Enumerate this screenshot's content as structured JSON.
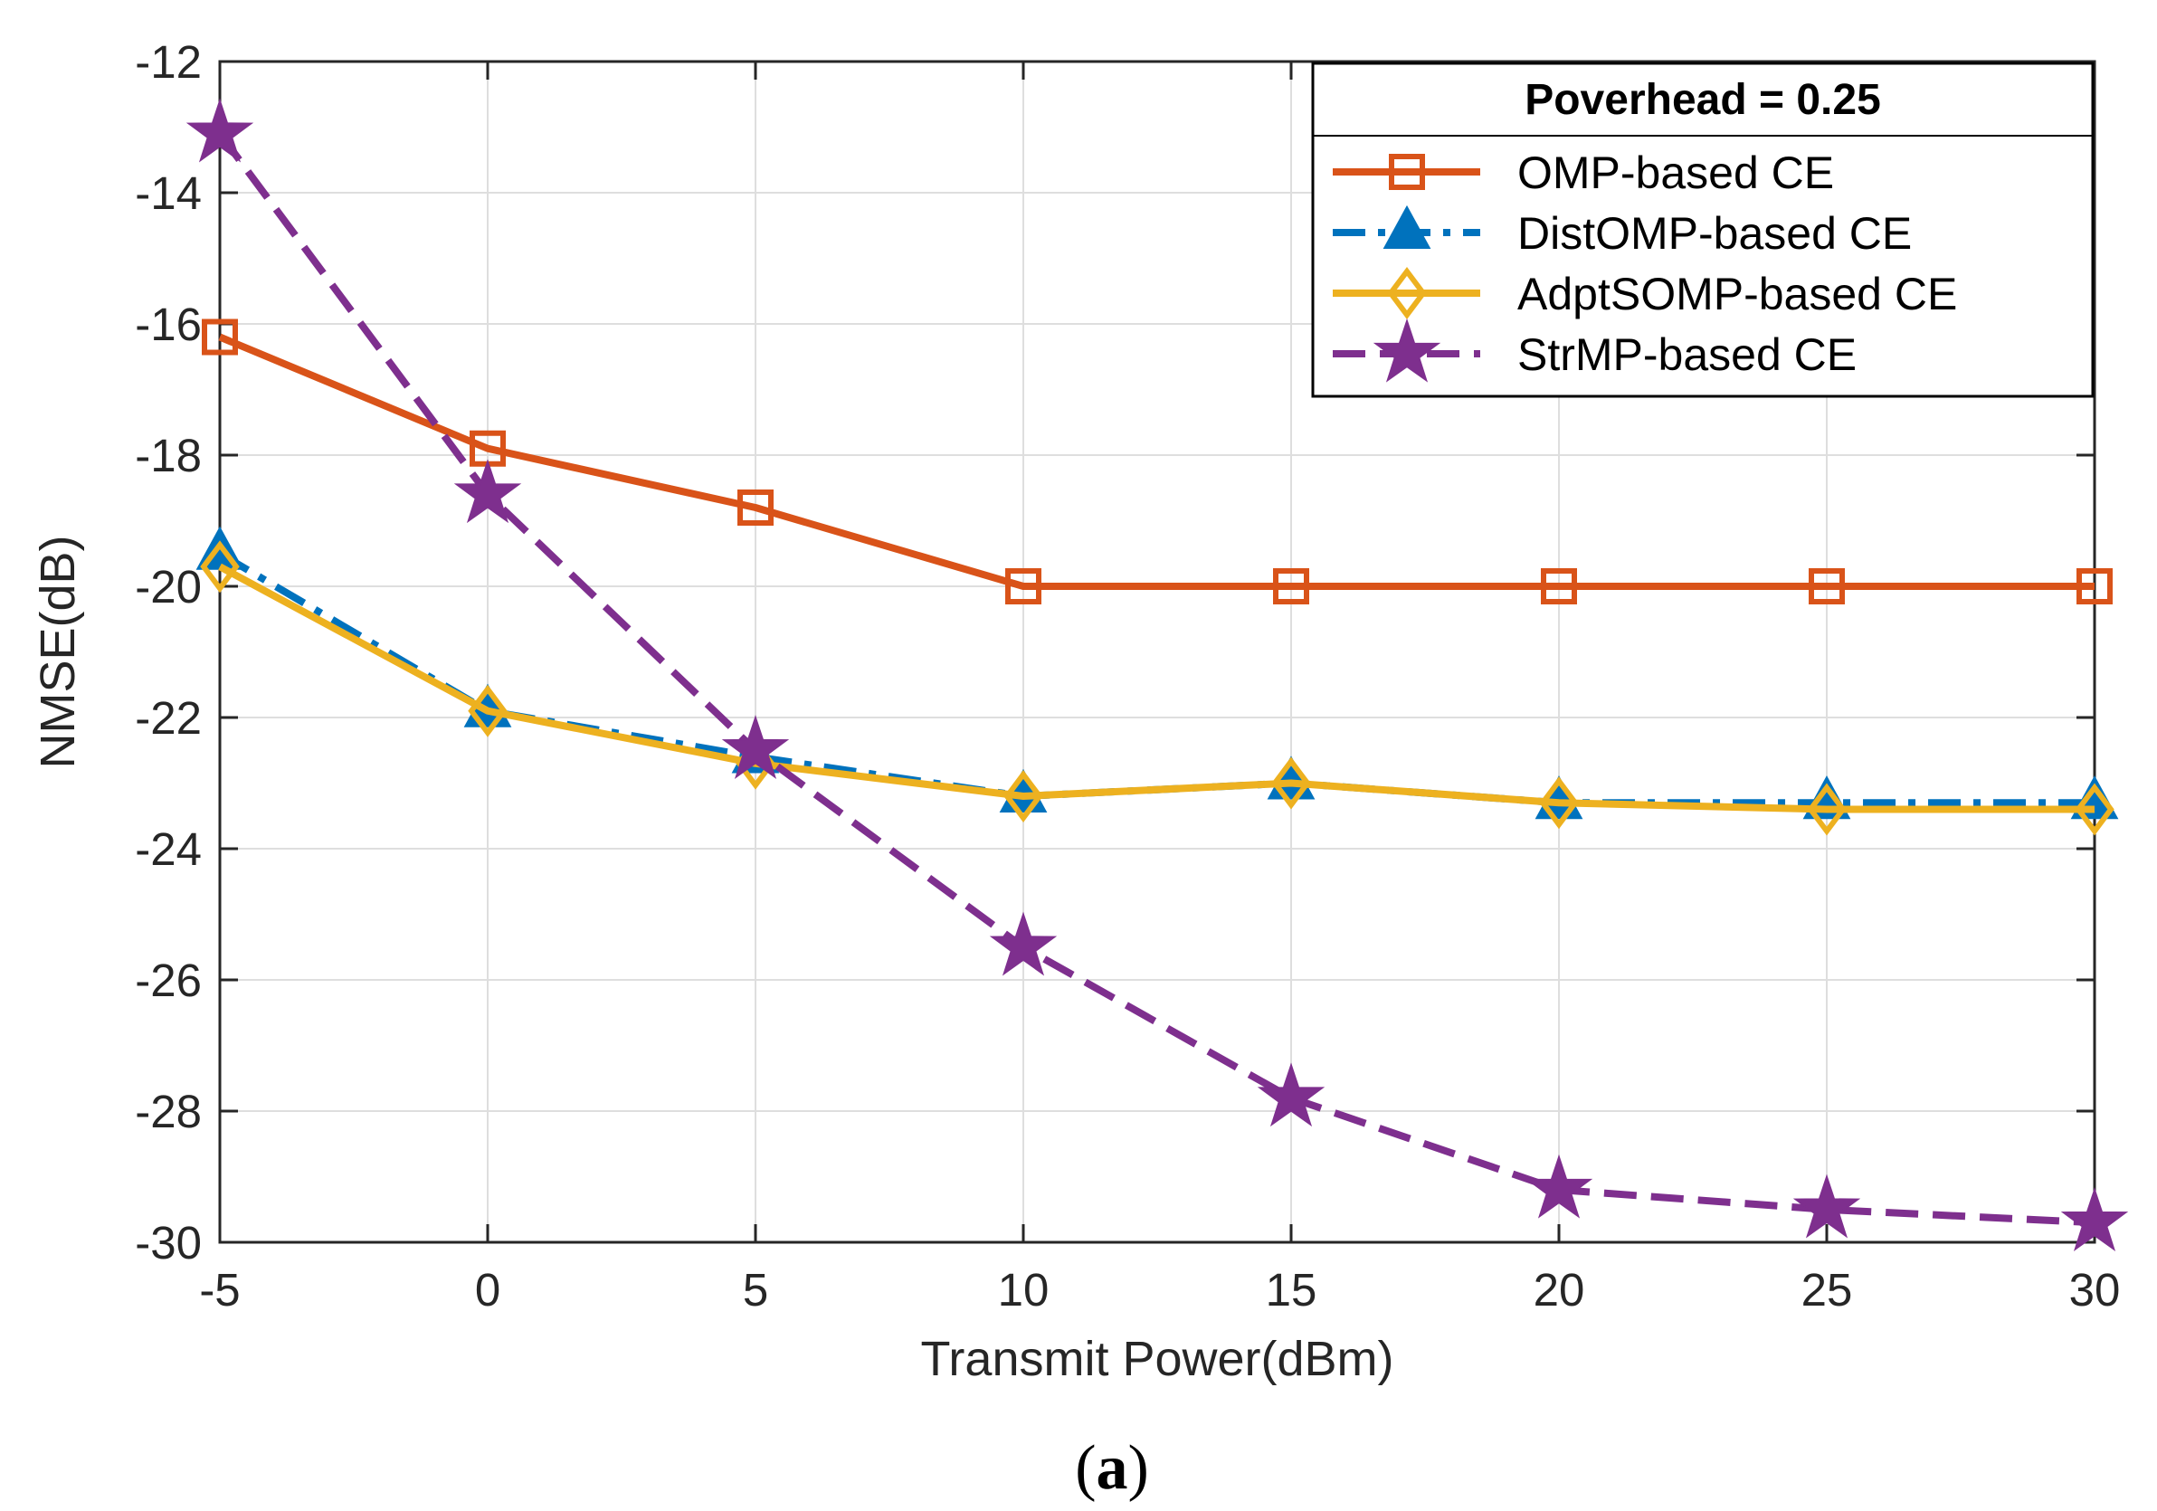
{
  "chart_data": {
    "type": "line",
    "xlabel": "Transmit Power(dBm)",
    "ylabel": "NMSE(dB)",
    "x": [
      -5,
      0,
      5,
      10,
      15,
      20,
      25,
      30
    ],
    "xlim": [
      -5,
      30
    ],
    "ylim": [
      -30,
      -12
    ],
    "xticks": [
      -5,
      0,
      5,
      10,
      15,
      20,
      25,
      30
    ],
    "yticks": [
      -12,
      -14,
      -16,
      -18,
      -20,
      -22,
      -24,
      -26,
      -28,
      -30
    ],
    "grid": true,
    "legend_title": "Poverhead = 0.25",
    "legend_position": "top-right",
    "series": [
      {
        "name": "OMP-based CE",
        "color": "#D95319",
        "marker": "square",
        "dash": "solid",
        "values": [
          -16.2,
          -17.9,
          -18.8,
          -20.0,
          -20.0,
          -20.0,
          -20.0,
          -20.0
        ]
      },
      {
        "name": "DistOMP-based CE",
        "color": "#0072BD",
        "marker": "triangle",
        "dash": "dashdot",
        "values": [
          -19.5,
          -21.9,
          -22.6,
          -23.2,
          -23.0,
          -23.3,
          -23.3,
          -23.3
        ]
      },
      {
        "name": "AdptSOMP-based CE",
        "color": "#EDB120",
        "marker": "diamond",
        "dash": "solid",
        "values": [
          -19.7,
          -21.9,
          -22.7,
          -23.2,
          -23.0,
          -23.3,
          -23.4,
          -23.4
        ]
      },
      {
        "name": "StrMP-based CE",
        "color": "#7E2F8E",
        "marker": "star",
        "dash": "dashed",
        "values": [
          -13.1,
          -18.6,
          -22.5,
          -25.5,
          -27.8,
          -29.2,
          -29.5,
          -29.7
        ]
      }
    ]
  },
  "caption": {
    "open": "(",
    "letter": "a",
    "close": ")"
  }
}
